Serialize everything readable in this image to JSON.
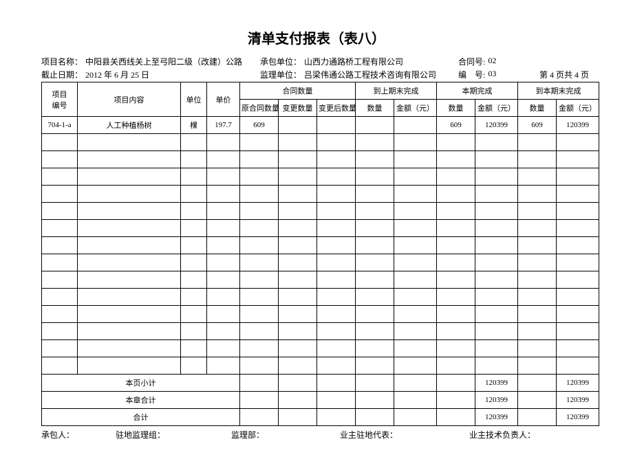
{
  "title": "清单支付报表（表八）",
  "meta": {
    "row1": {
      "project_name_label": "项目名称：",
      "project_name": "中阳县关西线关上至弓阳二级（改建）公路",
      "contractor_label": "承包单位：",
      "contractor": "山西力通路桥工程有限公司",
      "contract_no_label": "合同号:",
      "contract_no": "02"
    },
    "row2": {
      "cutoff_label": "截止日期：",
      "cutoff": "2012 年 6 月 25 日",
      "supervisor_label": "监理单位：",
      "supervisor": "吕梁伟通公路工程技术咨询有限公司",
      "serial_label": "编　号:",
      "serial": "03",
      "page_label": "第 4 页共 4 页"
    }
  },
  "headers": {
    "item_no": "项目\n编号",
    "item_desc": "项目内容",
    "unit": "单位",
    "price": "单价",
    "contract_qty": "合同数量",
    "contract_orig": "原合同数量",
    "contract_change": "变更数量",
    "contract_after": "变更后数量",
    "prev_done": "到上期末完成",
    "this_done": "本期完成",
    "to_date_done": "到本期末完成",
    "qty": "数量",
    "amount": "金额（元）"
  },
  "rows": [
    {
      "id": "704-1-a",
      "desc": "人工种植杨树",
      "unit": "棵",
      "price": "197.7",
      "orig_qty": "609",
      "change_qty": "",
      "after_qty": "",
      "prev_qty": "",
      "prev_amt": "",
      "this_qty": "609",
      "this_amt": "120399",
      "todate_qty": "609",
      "todate_amt": "120399"
    }
  ],
  "subtotals": {
    "page_label": "本页小计",
    "chapter_label": "本章合计",
    "total_label": "合计",
    "page": {
      "this_amt": "120399",
      "todate_amt": "120399"
    },
    "chapter": {
      "this_amt": "120399",
      "todate_amt": "120399"
    },
    "total": {
      "this_amt": "120399",
      "todate_amt": "120399"
    }
  },
  "footer": {
    "contractor_sig": "承包人：",
    "site_sup_group": "驻地监理组：",
    "sup_dept": "监理部：",
    "owner_site_rep": "业主驻地代表：",
    "owner_tech_lead": "业主技术负责人："
  },
  "blank_rows": 14
}
